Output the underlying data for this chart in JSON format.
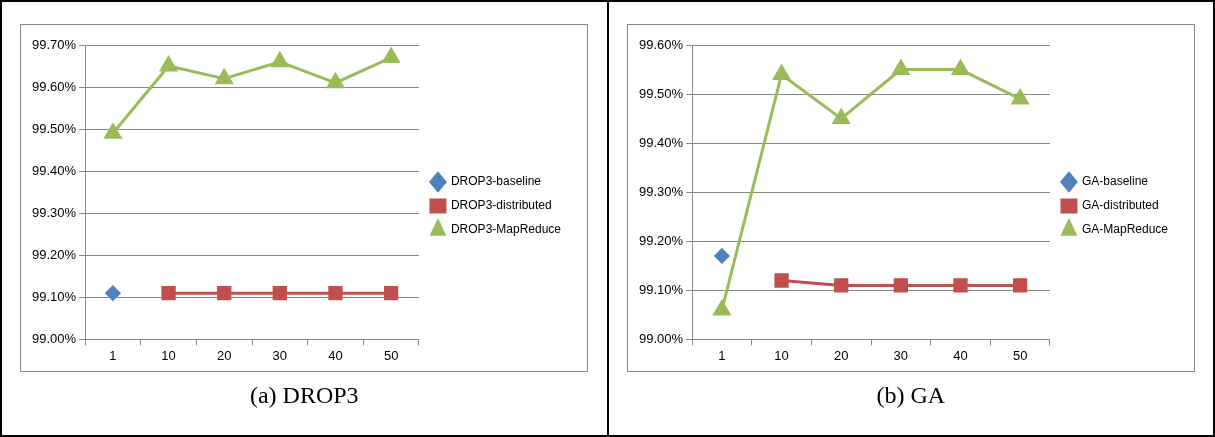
{
  "chart_data": [
    {
      "type": "line",
      "title": "(a) DROP3",
      "categories": [
        "1",
        "10",
        "20",
        "30",
        "40",
        "50"
      ],
      "series": [
        {
          "name": "DROP3-baseline",
          "color": "#4f81bd",
          "marker": "diamond",
          "values": [
            99.11,
            null,
            null,
            null,
            null,
            null
          ]
        },
        {
          "name": "DROP3-distributed",
          "color": "#c0504d",
          "marker": "square",
          "values": [
            null,
            99.11,
            99.11,
            99.11,
            99.11,
            99.11
          ]
        },
        {
          "name": "DROP3-MapReduce",
          "color": "#9bbb59",
          "marker": "triangle",
          "values": [
            99.49,
            99.65,
            99.62,
            99.66,
            99.61,
            99.67
          ]
        }
      ],
      "ylim": [
        99.0,
        99.7
      ],
      "yticks": [
        {
          "value": 99.0,
          "label": "99.00%"
        },
        {
          "value": 99.1,
          "label": "99.10%"
        },
        {
          "value": 99.2,
          "label": "99.20%"
        },
        {
          "value": 99.3,
          "label": "99.30%"
        },
        {
          "value": 99.4,
          "label": "99.40%"
        },
        {
          "value": 99.5,
          "label": "99.50%"
        },
        {
          "value": 99.6,
          "label": "99.60%"
        },
        {
          "value": 99.7,
          "label": "99.70%"
        }
      ],
      "grid": "y",
      "legend": "right"
    },
    {
      "type": "line",
      "title": "(b) GA",
      "categories": [
        "1",
        "10",
        "20",
        "30",
        "40",
        "50"
      ],
      "series": [
        {
          "name": "GA-baseline",
          "color": "#4f81bd",
          "marker": "diamond",
          "values": [
            99.17,
            null,
            null,
            null,
            null,
            null
          ]
        },
        {
          "name": "GA-distributed",
          "color": "#c0504d",
          "marker": "square",
          "values": [
            null,
            99.12,
            99.11,
            99.11,
            99.11,
            99.11
          ]
        },
        {
          "name": "GA-MapReduce",
          "color": "#9bbb59",
          "marker": "triangle",
          "values": [
            99.06,
            99.54,
            99.45,
            99.55,
            99.55,
            99.49
          ]
        }
      ],
      "ylim": [
        99.0,
        99.6
      ],
      "yticks": [
        {
          "value": 99.0,
          "label": "99.00%"
        },
        {
          "value": 99.1,
          "label": "99.10%"
        },
        {
          "value": 99.2,
          "label": "99.20%"
        },
        {
          "value": 99.3,
          "label": "99.30%"
        },
        {
          "value": 99.4,
          "label": "99.40%"
        },
        {
          "value": 99.5,
          "label": "99.50%"
        },
        {
          "value": 99.6,
          "label": "99.60%"
        }
      ],
      "grid": "y",
      "legend": "right"
    }
  ]
}
